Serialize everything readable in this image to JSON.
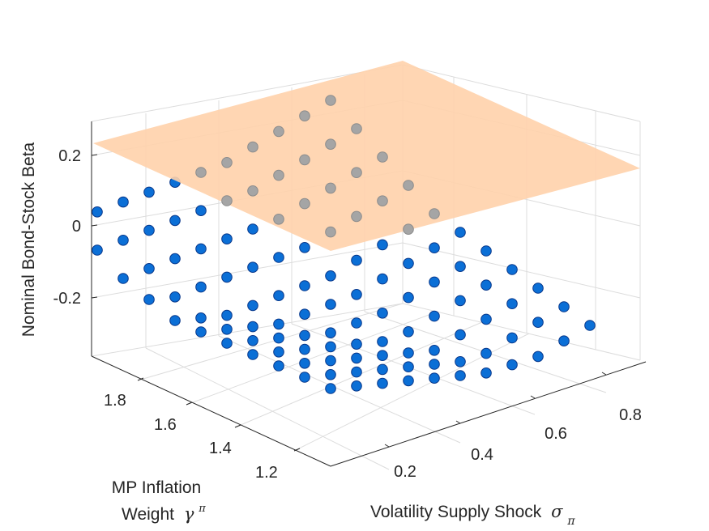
{
  "chart_data": {
    "type": "scatter3d",
    "x_label": "Volatility Supply Shock",
    "x_symbol": "σ",
    "x_subscript": "π",
    "y_label_line1": "MP Inflation",
    "y_label_line2": "Weight",
    "y_symbol": "γ",
    "y_superscript": "π",
    "z_label": "Nominal Bond-Stock Beta",
    "x_ticks": [
      "0.2",
      "0.4",
      "0.6",
      "0.8"
    ],
    "y_ticks": [
      "1.2",
      "1.4",
      "1.6",
      "1.8"
    ],
    "z_ticks": [
      "0.2",
      "0",
      "-0.2"
    ],
    "x_range": [
      0.05,
      0.9
    ],
    "y_range": [
      1.1,
      1.95
    ],
    "z_range": [
      -0.35,
      0.3
    ],
    "x_values": [
      0.1,
      0.2,
      0.3,
      0.4,
      0.5,
      0.6,
      0.7,
      0.8,
      0.9,
      1.0,
      1.1
    ],
    "y_values": [
      1.1,
      1.2,
      1.3,
      1.4,
      1.5,
      1.6,
      1.7,
      1.8,
      1.9,
      2.0,
      2.1
    ],
    "plane_z": 0.2,
    "point_color": "#0b6fd6",
    "plane_color": "#ffd2ab"
  }
}
